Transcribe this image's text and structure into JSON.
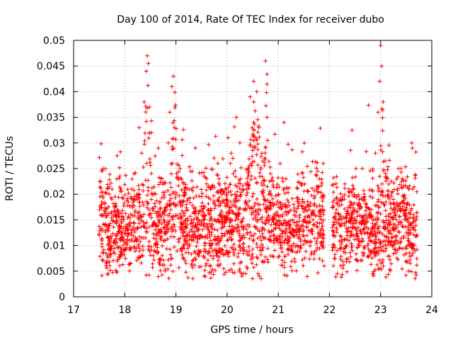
{
  "chart_data": {
    "type": "scatter",
    "title": "Day 100 of 2014, Rate Of TEC Index for receiver dubo",
    "xlabel": "GPS time / hours",
    "ylabel": "ROTI / TECUs",
    "xlim": [
      17,
      24
    ],
    "ylim": [
      0,
      0.05
    ],
    "xticks": [
      "17",
      "18",
      "19",
      "20",
      "21",
      "22",
      "23",
      "24"
    ],
    "yticks": [
      "0",
      "0.005",
      "0.01",
      "0.015",
      "0.02",
      "0.025",
      "0.03",
      "0.035",
      "0.04",
      "0.045",
      "0.05"
    ],
    "grid": true,
    "marker": "+",
    "color": "#ff0000",
    "series": [
      {
        "name": "ROTI",
        "x": [
          17.5,
          17.55,
          17.6,
          17.62,
          17.68,
          17.75,
          17.8,
          17.85,
          17.92,
          17.98,
          18.05,
          18.12,
          18.18,
          18.22,
          18.28,
          18.33,
          18.38,
          18.42,
          18.44,
          18.46,
          18.48,
          18.52,
          18.58,
          18.65,
          18.72,
          18.78,
          18.85,
          18.88,
          18.92,
          18.95,
          18.97,
          19.02,
          19.08,
          19.15,
          19.22,
          19.3,
          19.38,
          19.45,
          19.52,
          19.6,
          19.68,
          19.75,
          19.82,
          19.9,
          19.98,
          20.02,
          20.08,
          20.12,
          20.18,
          20.25,
          20.32,
          20.38,
          20.45,
          20.52,
          20.58,
          20.62,
          20.68,
          20.75,
          20.78,
          20.85,
          20.92,
          21.0,
          21.08,
          21.15,
          21.22,
          21.3,
          21.38,
          21.45,
          21.52,
          21.6,
          21.68,
          21.75,
          21.82,
          21.88,
          22.08,
          22.15,
          22.22,
          22.3,
          22.38,
          22.45,
          22.52,
          22.6,
          22.68,
          22.75,
          22.82,
          22.9,
          22.95,
          22.98,
          23.0,
          23.02,
          23.05,
          23.1,
          23.18,
          23.25,
          23.32,
          23.4,
          23.48,
          23.55,
          23.62,
          23.7
        ],
        "y": [
          0.012,
          0.0185,
          0.014,
          0.025,
          0.01,
          0.021,
          0.016,
          0.0275,
          0.008,
          0.015,
          0.013,
          0.0195,
          0.024,
          0.011,
          0.033,
          0.028,
          0.038,
          0.044,
          0.047,
          0.0455,
          0.037,
          0.019,
          0.009,
          0.012,
          0.023,
          0.016,
          0.03,
          0.036,
          0.041,
          0.043,
          0.033,
          0.018,
          0.025,
          0.01,
          0.014,
          0.021,
          0.029,
          0.012,
          0.017,
          0.023,
          0.011,
          0.015,
          0.026,
          0.009,
          0.019,
          0.031,
          0.028,
          0.024,
          0.035,
          0.03,
          0.017,
          0.021,
          0.039,
          0.042,
          0.04,
          0.033,
          0.028,
          0.046,
          0.035,
          0.024,
          0.012,
          0.02,
          0.016,
          0.023,
          0.01,
          0.018,
          0.014,
          0.022,
          0.011,
          0.017,
          0.015,
          0.021,
          0.013,
          0.026,
          0.014,
          0.009,
          0.019,
          0.022,
          0.011,
          0.016,
          0.025,
          0.013,
          0.02,
          0.01,
          0.017,
          0.028,
          0.036,
          0.042,
          0.049,
          0.045,
          0.038,
          0.024,
          0.014,
          0.019,
          0.011,
          0.025,
          0.016,
          0.021,
          0.029,
          0.012
        ]
      }
    ],
    "background_points": {
      "count": 2600,
      "segments": [
        {
          "start": 17.5,
          "end": 21.9
        },
        {
          "start": 22.05,
          "end": 23.72
        }
      ],
      "spikes": [
        {
          "center": 18.44,
          "halfwidth": 0.06,
          "max": 0.047
        },
        {
          "center": 18.97,
          "halfwidth": 0.06,
          "max": 0.043
        },
        {
          "center": 20.55,
          "halfwidth": 0.12,
          "max": 0.042
        },
        {
          "center": 20.78,
          "halfwidth": 0.04,
          "max": 0.046
        },
        {
          "center": 23.02,
          "halfwidth": 0.04,
          "max": 0.049
        }
      ]
    }
  }
}
